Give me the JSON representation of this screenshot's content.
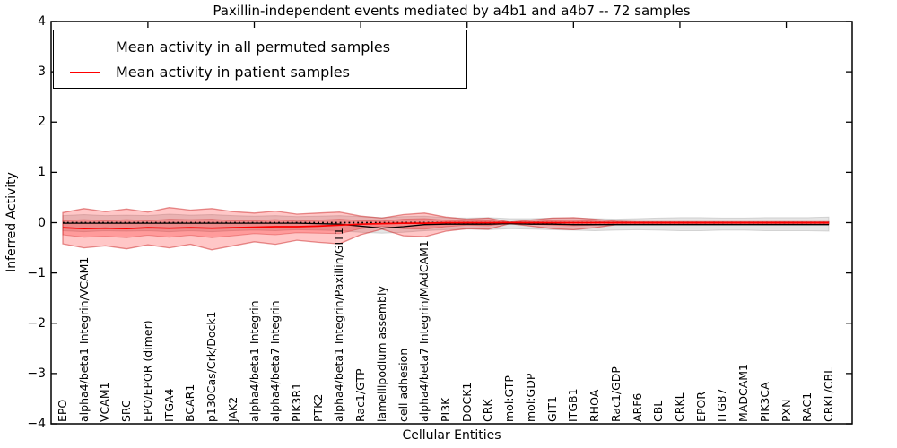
{
  "title": "Paxillin-independent events mediated by a4b1 and a4b7 -- 72 samples",
  "axes": {
    "x_label": "Cellular Entities",
    "y_label": "Inferred Activity"
  },
  "legend": {
    "items": [
      {
        "label": "Mean activity in all permuted samples",
        "color": "#000000"
      },
      {
        "label": "Mean activity in patient samples",
        "color": "#ff0000"
      }
    ]
  },
  "chart_data": {
    "type": "line",
    "title": "Paxillin-independent events mediated by a4b1 and a4b7 -- 72 samples",
    "xlabel": "Cellular Entities",
    "ylabel": "Inferred Activity",
    "ylim": [
      -4,
      4
    ],
    "yticks": [
      -4,
      -3,
      -2,
      -1,
      0,
      1,
      2,
      3,
      4
    ],
    "x_tick_indices": [
      4,
      9,
      14,
      19,
      24,
      29,
      34
    ],
    "grid": false,
    "legend_position": "upper left",
    "zero_line": {
      "value": 0,
      "style": "dotted",
      "color": "#000000"
    },
    "categories": [
      "EPO",
      "alpha4/beta1 Integrin/VCAM1",
      "VCAM1",
      "SRC",
      "EPO/EPOR (dimer)",
      "ITGA4",
      "BCAR1",
      "p130Cas/Crk/Dock1",
      "JAK2",
      "alpha4/beta1 Integrin",
      "alpha4/beta7 Integrin",
      "PIK3R1",
      "PTK2",
      "alpha4/beta1 Integrin/Paxillin/GIT1",
      "Rac1/GTP",
      "lamellipodium assembly",
      "cell adhesion",
      "alpha4/beta7 Integrin/MAdCAM1",
      "PI3K",
      "DOCK1",
      "CRK",
      "mol:GTP",
      "mol:GDP",
      "GIT1",
      "ITGB1",
      "RHOA",
      "Rac1/GDP",
      "ARF6",
      "CBL",
      "CRKL",
      "EPOR",
      "ITGB7",
      "MADCAM1",
      "PIK3CA",
      "PXN",
      "RAC1",
      "CRKL/CBL"
    ],
    "series": [
      {
        "name": "Mean activity in all permuted samples",
        "color": "#000000",
        "line_style": "solid",
        "width": 1.3,
        "values": [
          -0.01,
          -0.01,
          -0.01,
          -0.01,
          -0.01,
          -0.01,
          -0.01,
          -0.01,
          -0.01,
          -0.01,
          -0.01,
          -0.01,
          -0.02,
          -0.03,
          -0.07,
          -0.11,
          -0.08,
          -0.04,
          -0.03,
          -0.03,
          -0.03,
          -0.02,
          -0.03,
          -0.03,
          -0.04,
          -0.04,
          -0.04,
          -0.04,
          -0.04,
          -0.04,
          -0.04,
          -0.04,
          -0.04,
          -0.04,
          -0.04,
          -0.04,
          -0.04
        ]
      },
      {
        "name": "Mean activity in patient samples",
        "color": "#ff0000",
        "line_style": "solid",
        "width": 1.7,
        "values": [
          -0.1,
          -0.12,
          -0.11,
          -0.12,
          -0.1,
          -0.11,
          -0.1,
          -0.11,
          -0.1,
          -0.09,
          -0.08,
          -0.08,
          -0.07,
          -0.05,
          -0.03,
          -0.02,
          -0.01,
          -0.01,
          0,
          0,
          0,
          0,
          0,
          0,
          0,
          0,
          0,
          0,
          0,
          0,
          0,
          0,
          0,
          0,
          0,
          0,
          0
        ]
      }
    ],
    "bands": [
      {
        "name": "permuted samples range",
        "fill": "rgba(0,0,0,0.10)",
        "edge": "rgba(120,120,120,0.25)",
        "edge_width": 1,
        "upper": [
          0.14,
          0.16,
          0.14,
          0.15,
          0.14,
          0.17,
          0.15,
          0.16,
          0.14,
          0.13,
          0.14,
          0.12,
          0.13,
          0.14,
          0.12,
          0.1,
          0.12,
          0.13,
          0.1,
          0.09,
          0.1,
          0.08,
          0.08,
          0.09,
          0.09,
          0.08,
          0.07,
          0.08,
          0.09,
          0.1,
          0.1,
          0.09,
          0.09,
          0.1,
          0.1,
          0.1,
          0.11
        ],
        "lower": [
          -0.16,
          -0.18,
          -0.16,
          -0.17,
          -0.16,
          -0.18,
          -0.16,
          -0.18,
          -0.16,
          -0.15,
          -0.16,
          -0.14,
          -0.15,
          -0.16,
          -0.19,
          -0.21,
          -0.19,
          -0.16,
          -0.14,
          -0.13,
          -0.14,
          -0.12,
          -0.13,
          -0.14,
          -0.15,
          -0.16,
          -0.15,
          -0.14,
          -0.15,
          -0.16,
          -0.16,
          -0.15,
          -0.15,
          -0.16,
          -0.16,
          -0.16,
          -0.17
        ]
      },
      {
        "name": "patient samples range",
        "fill": "rgba(255,0,0,0.22)",
        "edge": "rgba(205,35,35,0.5)",
        "edge_width": 1.3,
        "upper": [
          0.2,
          0.28,
          0.22,
          0.27,
          0.21,
          0.3,
          0.25,
          0.28,
          0.22,
          0.19,
          0.23,
          0.17,
          0.19,
          0.21,
          0.13,
          0.09,
          0.16,
          0.19,
          0.11,
          0.07,
          0.09,
          0.01,
          0.05,
          0.09,
          0.1,
          0.07,
          0.03,
          0.02,
          0.02,
          0.02,
          0.02,
          0.02,
          0.02,
          0.02,
          0.02,
          0.02,
          0.02
        ],
        "lower": [
          -0.42,
          -0.5,
          -0.46,
          -0.52,
          -0.44,
          -0.5,
          -0.43,
          -0.54,
          -0.46,
          -0.38,
          -0.43,
          -0.35,
          -0.39,
          -0.42,
          -0.24,
          -0.13,
          -0.26,
          -0.28,
          -0.17,
          -0.12,
          -0.13,
          -0.02,
          -0.07,
          -0.12,
          -0.14,
          -0.1,
          -0.04,
          -0.03,
          -0.03,
          -0.03,
          -0.03,
          -0.03,
          -0.03,
          -0.03,
          -0.03,
          -0.03,
          -0.03
        ]
      },
      {
        "name": "patient samples inner range",
        "fill": "rgba(255,0,0,0.22)",
        "edge": "rgba(205,35,35,0.35)",
        "edge_width": 1,
        "upper": [
          0.04,
          0.06,
          0.04,
          0.06,
          0.04,
          0.07,
          0.06,
          0.07,
          0.04,
          0.04,
          0.06,
          0.03,
          0.05,
          0.07,
          0.04,
          0.03,
          0.07,
          0.08,
          0.05,
          0.03,
          0.04,
          0.01,
          0.02,
          0.04,
          0.05,
          0.03,
          0.01,
          0.01,
          0.01,
          0.01,
          0.01,
          0.01,
          0.01,
          0.01,
          0.01,
          0.01,
          0.01
        ],
        "lower": [
          -0.24,
          -0.29,
          -0.27,
          -0.3,
          -0.25,
          -0.29,
          -0.25,
          -0.3,
          -0.26,
          -0.22,
          -0.24,
          -0.2,
          -0.21,
          -0.22,
          -0.12,
          -0.07,
          -0.12,
          -0.13,
          -0.08,
          -0.05,
          -0.06,
          -0.01,
          -0.03,
          -0.05,
          -0.06,
          -0.05,
          -0.02,
          -0.01,
          -0.01,
          -0.01,
          -0.01,
          -0.01,
          -0.01,
          -0.01,
          -0.01,
          -0.01,
          -0.01
        ]
      }
    ]
  }
}
